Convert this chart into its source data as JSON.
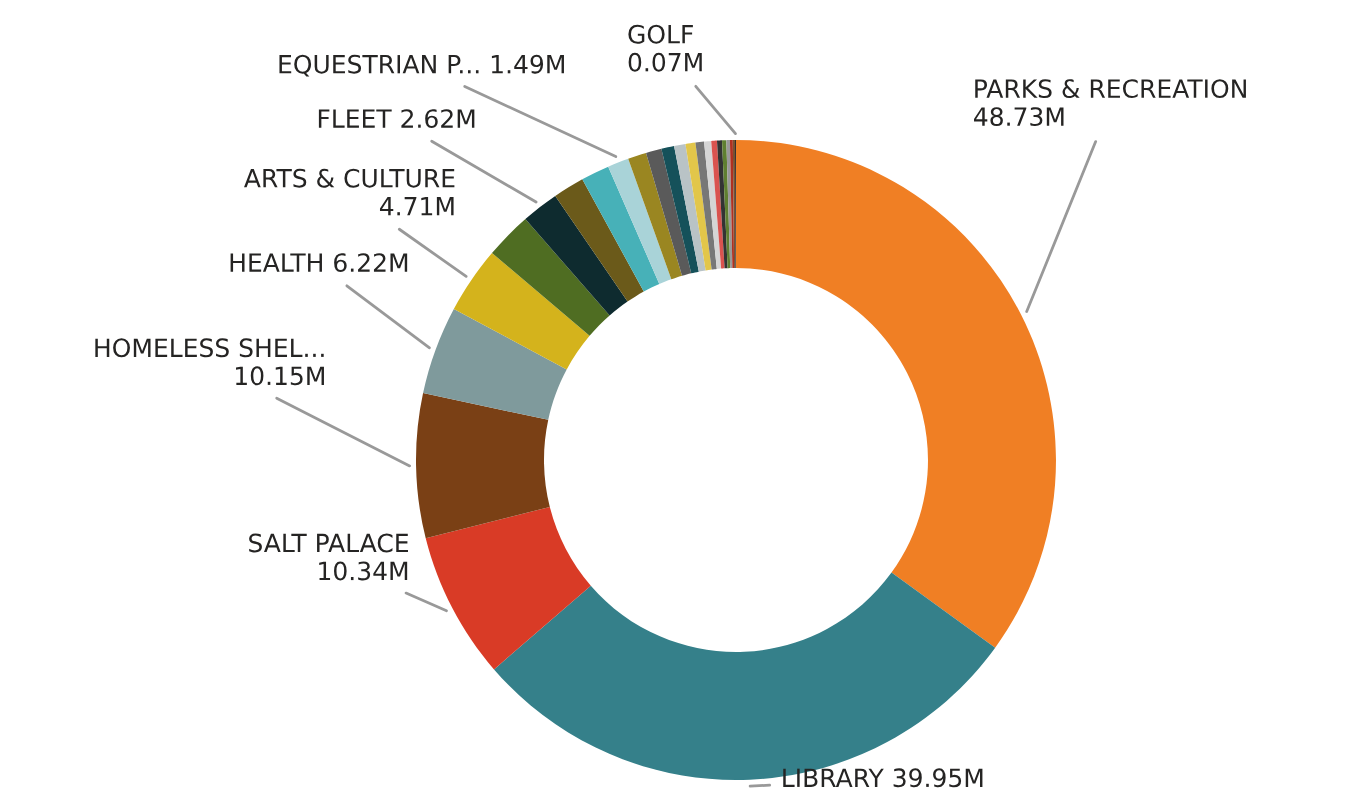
{
  "chart_data": {
    "type": "donut",
    "categories": [
      "PARKS & RECREATION",
      "LIBRARY",
      "SALT PALACE",
      "HOMELESS SHEL...",
      "HEALTH",
      "ARTS & CULTURE",
      null,
      "FLEET",
      null,
      null,
      "EQUESTRIAN P...",
      null,
      null,
      null,
      null,
      null,
      null,
      null,
      null,
      null,
      null,
      null,
      null,
      null,
      "GOLF"
    ],
    "values": [
      48.73,
      39.95,
      10.34,
      10.15,
      6.22,
      4.71,
      3.3,
      2.62,
      2.2,
      2.0,
      1.49,
      1.3,
      1.1,
      0.9,
      0.8,
      0.7,
      0.6,
      0.5,
      0.4,
      0.35,
      0.3,
      0.25,
      0.2,
      0.15,
      0.07
    ],
    "value_labels": [
      "48.73M",
      "39.95M",
      "10.34M",
      "10.15M",
      "6.22M",
      "4.71M",
      null,
      "2.62M",
      null,
      null,
      "1.49M",
      null,
      null,
      null,
      null,
      null,
      null,
      null,
      null,
      null,
      null,
      null,
      null,
      null,
      "0.07M"
    ],
    "colors": [
      "#f07f24",
      "#35808a",
      "#d93b26",
      "#7a4015",
      "#7f9a9c",
      "#d4b31c",
      "#4f6d22",
      "#0e2b2f",
      "#6b5a1a",
      "#47b1b8",
      "#a9d3d8",
      "#9a8621",
      "#5a5a5a",
      "#15515a",
      "#b9c3c6",
      "#e2c64a",
      "#777777",
      "#d5d5d5",
      "#d9534f",
      "#333333",
      "#5f7f30",
      "#999999",
      "#b03020",
      "#7a5030",
      "#2f2f2f"
    ],
    "legend": false
  }
}
